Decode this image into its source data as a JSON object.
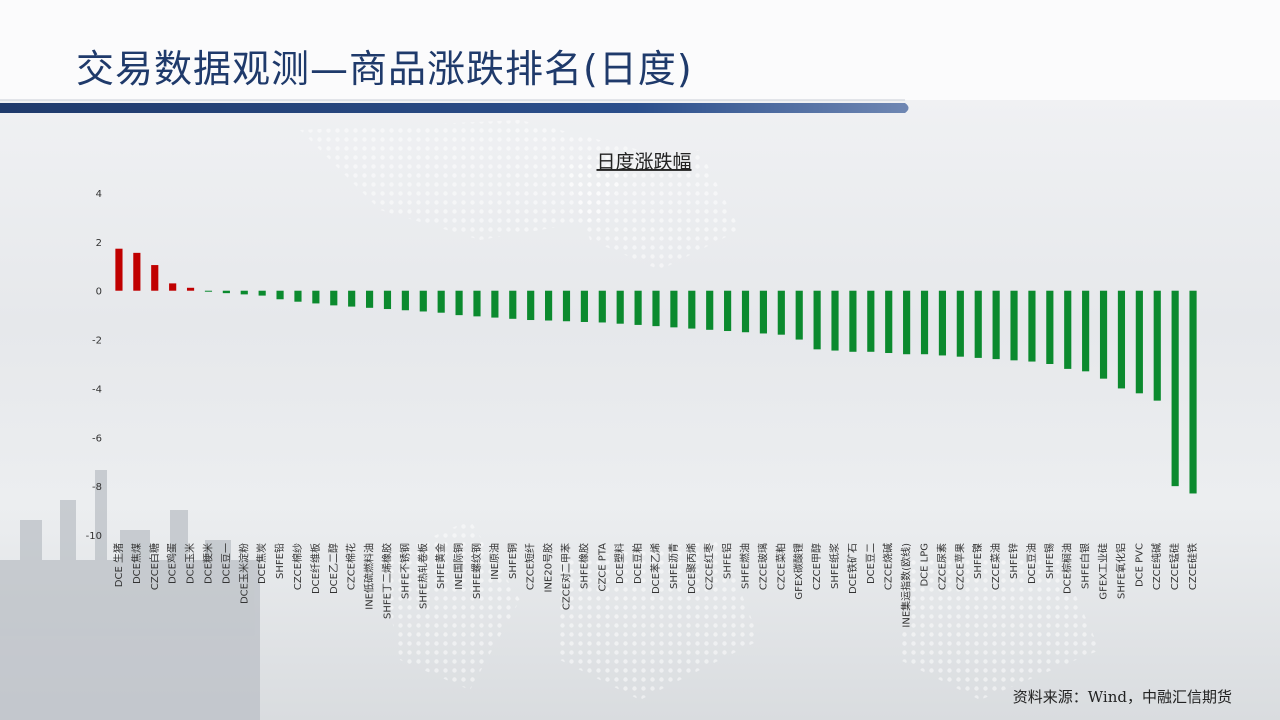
{
  "page": {
    "title": "交易数据观测—商品涨跌排名(日度)",
    "source": "资料来源：Wind，中融汇信期货"
  },
  "colors": {
    "up": "#c00000",
    "down": "#0b8a2e",
    "title": "#1f3a6b",
    "banner": "#1f3a6b"
  },
  "chart_data": {
    "type": "bar",
    "title": "日度涨跌幅",
    "xlabel": "",
    "ylabel": "",
    "ylim": [
      -10,
      4
    ],
    "yticks": [
      4,
      2,
      0,
      -2,
      -4,
      -6,
      -8,
      -10
    ],
    "grid": false,
    "legend": "none",
    "categories": [
      "DCE 生猪",
      "DCE焦煤",
      "CZCE白糖",
      "DCE鸡蛋",
      "DCE玉米",
      "DCE粳米",
      "DCE豆一",
      "DCE玉米淀粉",
      "DCE焦炭",
      "SHFE铅",
      "CZCE棉纱",
      "DCE纤维板",
      "DCE乙二醇",
      "CZCE棉花",
      "INE低硫燃料油",
      "SHFE丁二烯橡胶",
      "SHFE不锈钢",
      "SHFE热轧卷板",
      "SHFE黄金",
      "INE国际铜",
      "SHFE螺纹钢",
      "INE原油",
      "SHFE铜",
      "CZCE短纤",
      "INE20号胶",
      "CZCE对二甲苯",
      "SHFE橡胶",
      "CZCE PTA",
      "DCE塑料",
      "DCE豆粕",
      "DCE苯乙烯",
      "SHFE沥青",
      "DCE聚丙烯",
      "CZCE红枣",
      "SHFE铝",
      "SHFE燃油",
      "CZCE玻璃",
      "CZCE菜粕",
      "GFEX碳酸锂",
      "CZCE甲醇",
      "SHFE纸浆",
      "DCE铁矿石",
      "DCE豆二",
      "CZCE烧碱",
      "INE集运指数(欧线)",
      "DCE LPG",
      "CZCE尿素",
      "CZCE苹果",
      "SHFE镍",
      "CZCE菜油",
      "SHFE锌",
      "DCE豆油",
      "SHFE锡",
      "DCE棕榈油",
      "SHFE白银",
      "GFEX工业硅",
      "SHFE氧化铝",
      "DCE PVC",
      "CZCE纯碱",
      "CZCE锰硅",
      "CZCE硅铁"
    ],
    "values": [
      1.72,
      1.55,
      1.05,
      0.3,
      0.12,
      -0.03,
      -0.1,
      -0.15,
      -0.2,
      -0.35,
      -0.45,
      -0.52,
      -0.6,
      -0.65,
      -0.7,
      -0.75,
      -0.8,
      -0.85,
      -0.9,
      -1.0,
      -1.05,
      -1.1,
      -1.15,
      -1.2,
      -1.22,
      -1.25,
      -1.28,
      -1.3,
      -1.35,
      -1.4,
      -1.45,
      -1.5,
      -1.55,
      -1.6,
      -1.65,
      -1.7,
      -1.75,
      -1.8,
      -2.0,
      -2.4,
      -2.45,
      -2.5,
      -2.5,
      -2.55,
      -2.6,
      -2.6,
      -2.65,
      -2.7,
      -2.75,
      -2.8,
      -2.85,
      -2.9,
      -3.0,
      -3.2,
      -3.3,
      -3.6,
      -4.0,
      -4.2,
      -4.5,
      -8.0,
      -8.3
    ]
  }
}
